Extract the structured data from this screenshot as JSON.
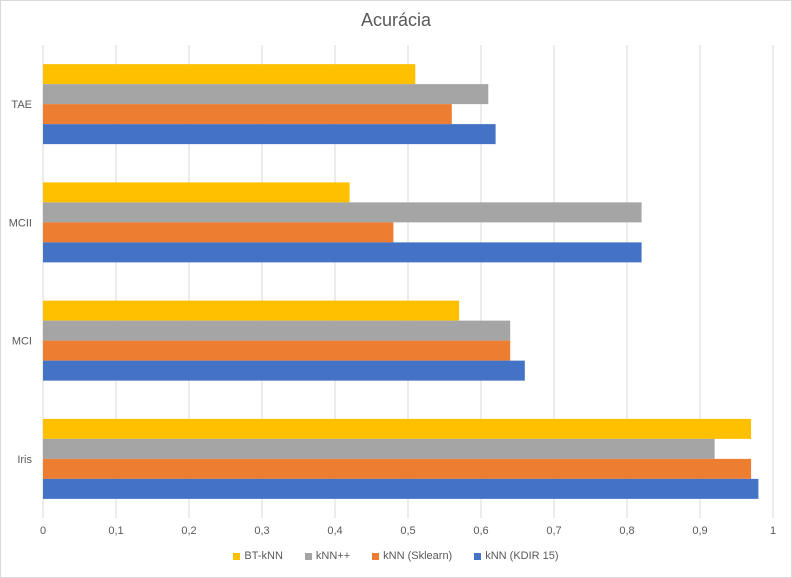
{
  "chart_data": {
    "type": "bar",
    "orientation": "horizontal",
    "title": "Acurácia",
    "categories": [
      "TAE",
      "MCII",
      "MCI",
      "Iris"
    ],
    "series": [
      {
        "name": "BT-kNN",
        "color": "#FFC000",
        "values": [
          0.51,
          0.42,
          0.57,
          0.97
        ]
      },
      {
        "name": "kNN++",
        "color": "#A5A5A5",
        "values": [
          0.61,
          0.82,
          0.64,
          0.92
        ]
      },
      {
        "name": "kNN (Sklearn)",
        "color": "#ED7D31",
        "values": [
          0.56,
          0.48,
          0.64,
          0.97
        ]
      },
      {
        "name": "kNN (KDIR 15)",
        "color": "#4472C4",
        "values": [
          0.62,
          0.82,
          0.66,
          0.98
        ]
      }
    ],
    "x_ticks": [
      "0",
      "0,1",
      "0,2",
      "0,3",
      "0,4",
      "0,5",
      "0,6",
      "0,7",
      "0,8",
      "0,9",
      "1"
    ],
    "xlim": [
      0,
      1
    ],
    "grid": "vertical",
    "legend": "bottom"
  }
}
